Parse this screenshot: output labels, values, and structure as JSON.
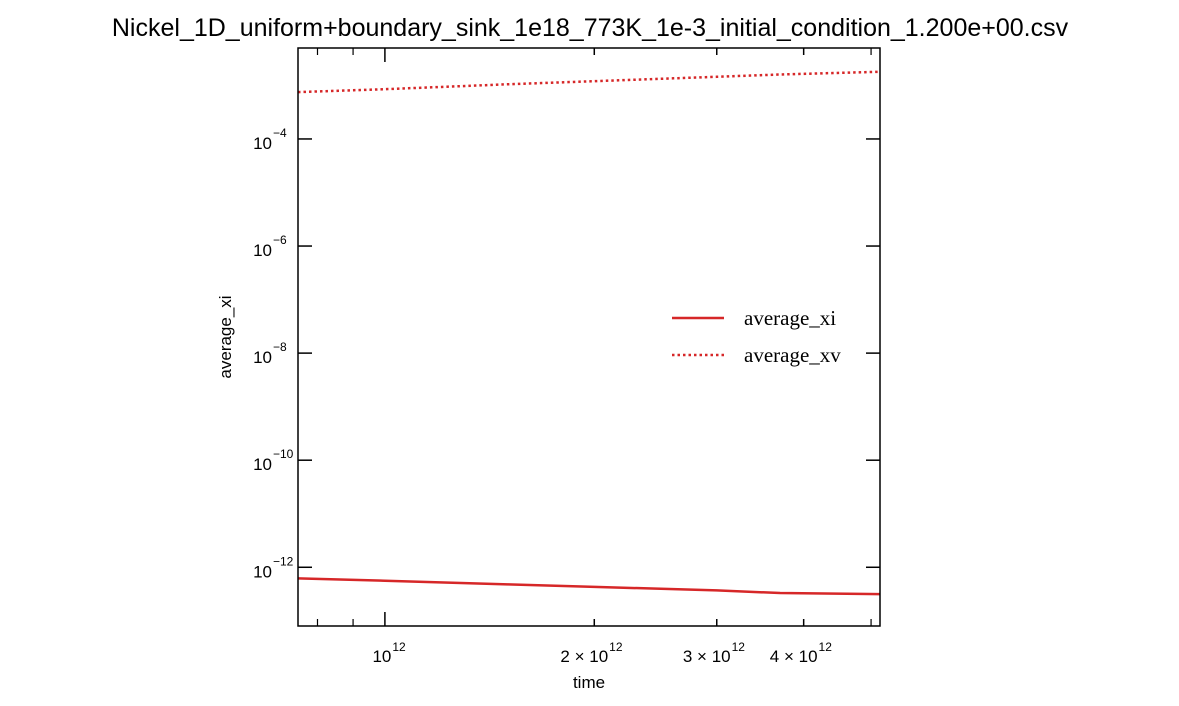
{
  "chart_data": {
    "type": "line",
    "title": "Nickel_1D_uniform+boundary_sink_1e18_773K_1e-3_initial_condition_1.200e+00.csv",
    "xlabel": "time",
    "ylabel": "average_xi",
    "xscale": "log",
    "yscale": "log",
    "xlim": [
      750000000000,
      5150000000000
    ],
    "ylim": [
      8e-14,
      0.005
    ],
    "xticks": [
      {
        "value": 1000000000000,
        "label": "10",
        "sup": "12"
      },
      {
        "value": 2000000000000,
        "label": "2 × 10",
        "sup": "12"
      },
      {
        "value": 3000000000000,
        "label": "3 × 10",
        "sup": "12"
      },
      {
        "value": 4000000000000,
        "label": "4 × 10",
        "sup": "12"
      }
    ],
    "yticks": [
      {
        "value": 1e-12,
        "label": "10",
        "sup": "−12"
      },
      {
        "value": 1e-10,
        "label": "10",
        "sup": "−10"
      },
      {
        "value": 1e-08,
        "label": "10",
        "sup": "−8"
      },
      {
        "value": 1e-06,
        "label": "10",
        "sup": "−6"
      },
      {
        "value": 0.0001,
        "label": "10",
        "sup": "−4"
      }
    ],
    "legend_position": "center-right",
    "grid": false,
    "series": [
      {
        "name": "average_xi",
        "style": "solid",
        "color": "#d62728",
        "points": [
          [
            750000000000,
            6.2e-13
          ],
          [
            1000000000000,
            5.6e-13
          ],
          [
            1500000000000,
            4.8e-13
          ],
          [
            2000000000000,
            4.3e-13
          ],
          [
            3000000000000,
            3.7e-13
          ],
          [
            3700000000000,
            3.3e-13
          ],
          [
            5150000000000,
            3.15e-13
          ]
        ]
      },
      {
        "name": "average_xv",
        "style": "dotted",
        "color": "#d62728",
        "points": [
          [
            750000000000,
            0.00075
          ],
          [
            1000000000000,
            0.00085
          ],
          [
            1500000000000,
            0.00105
          ],
          [
            2000000000000,
            0.0012
          ],
          [
            3000000000000,
            0.00145
          ],
          [
            3700000000000,
            0.0016
          ],
          [
            5150000000000,
            0.0018
          ]
        ]
      }
    ]
  }
}
